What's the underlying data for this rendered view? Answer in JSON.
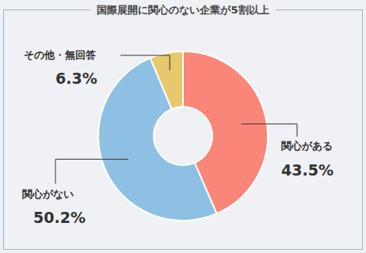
{
  "chart_data": {
    "type": "pie",
    "title": "国際展開に関心のない企業が5割以上",
    "categories": [
      "関心がある",
      "関心がない",
      "その他・無回答"
    ],
    "values": [
      43.5,
      50.2,
      6.3
    ],
    "value_labels": [
      "43.5%",
      "50.2%",
      "6.3%"
    ],
    "colors": [
      "#f98678",
      "#8ec0e3",
      "#e8c86c"
    ],
    "data_labels": true
  }
}
